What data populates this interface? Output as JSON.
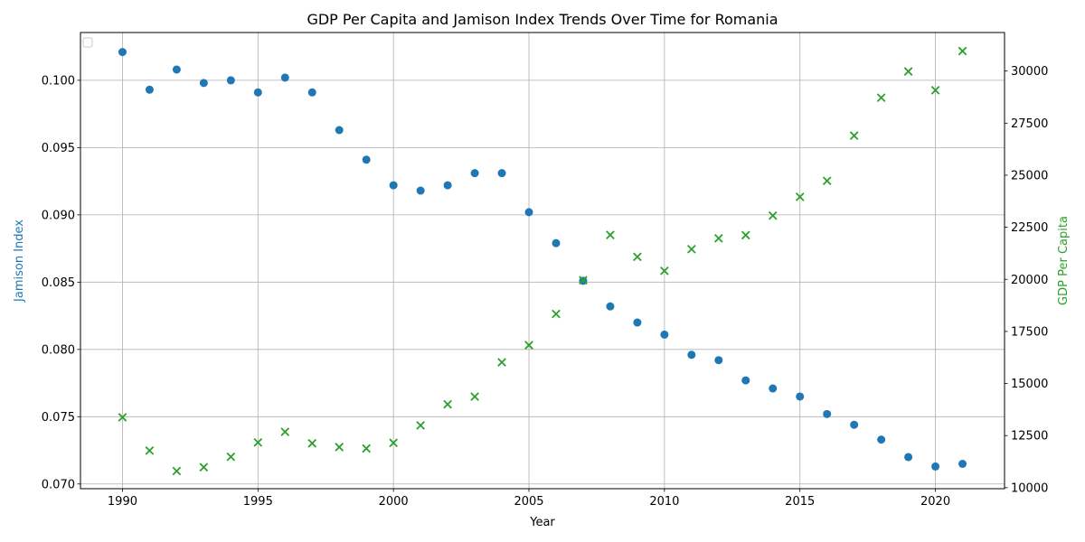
{
  "chart_data": {
    "type": "scatter",
    "title": "GDP Per Capita and Jamison Index Trends Over Time for Romania",
    "xlabel": "Year",
    "ylabel_left": "Jamison Index",
    "ylabel_right": "GDP Per Capita",
    "xlim": [
      1988.45,
      2022.55
    ],
    "ylim_left": [
      0.06965,
      0.10355
    ],
    "ylim_right": [
      9950,
      31850
    ],
    "x_ticks": [
      1990,
      1995,
      2000,
      2005,
      2010,
      2015,
      2020
    ],
    "y_ticks_left": [
      0.07,
      0.075,
      0.08,
      0.085,
      0.09,
      0.095,
      0.1
    ],
    "y_ticks_right": [
      10000,
      12500,
      15000,
      17500,
      20000,
      22500,
      25000,
      27500,
      30000
    ],
    "grid": true,
    "legend": "top-left",
    "colors": {
      "left": "#1f77b4",
      "right": "#2ca02c",
      "grid": "#b0b0b0"
    },
    "x": [
      1990,
      1991,
      1992,
      1993,
      1994,
      1995,
      1996,
      1997,
      1998,
      1999,
      2000,
      2001,
      2002,
      2003,
      2004,
      2005,
      2006,
      2007,
      2008,
      2009,
      2010,
      2011,
      2012,
      2013,
      2014,
      2015,
      2016,
      2017,
      2018,
      2019,
      2020,
      2021
    ],
    "series": [
      {
        "axis": "left",
        "marker": "circle",
        "values": [
          0.1021,
          0.0993,
          0.1008,
          0.0998,
          0.1,
          0.0991,
          0.1002,
          0.0991,
          0.0963,
          0.0941,
          0.0922,
          0.0918,
          0.0922,
          0.0931,
          0.0931,
          0.0902,
          0.0879,
          0.0851,
          0.0832,
          0.082,
          0.0811,
          0.0796,
          0.0792,
          0.0777,
          0.0771,
          0.0765,
          0.0752,
          0.0744,
          0.0733,
          0.072,
          0.0713,
          0.0715
        ]
      },
      {
        "axis": "right",
        "marker": "x",
        "values": [
          13380,
          11780,
          10800,
          10980,
          11480,
          12170,
          12680,
          12130,
          11950,
          11880,
          12150,
          12990,
          14000,
          14370,
          16020,
          16840,
          18340,
          19960,
          22130,
          21080,
          20410,
          21450,
          21970,
          22120,
          23060,
          23960,
          24730,
          26900,
          28720,
          29980,
          29080,
          30960
        ]
      }
    ]
  }
}
